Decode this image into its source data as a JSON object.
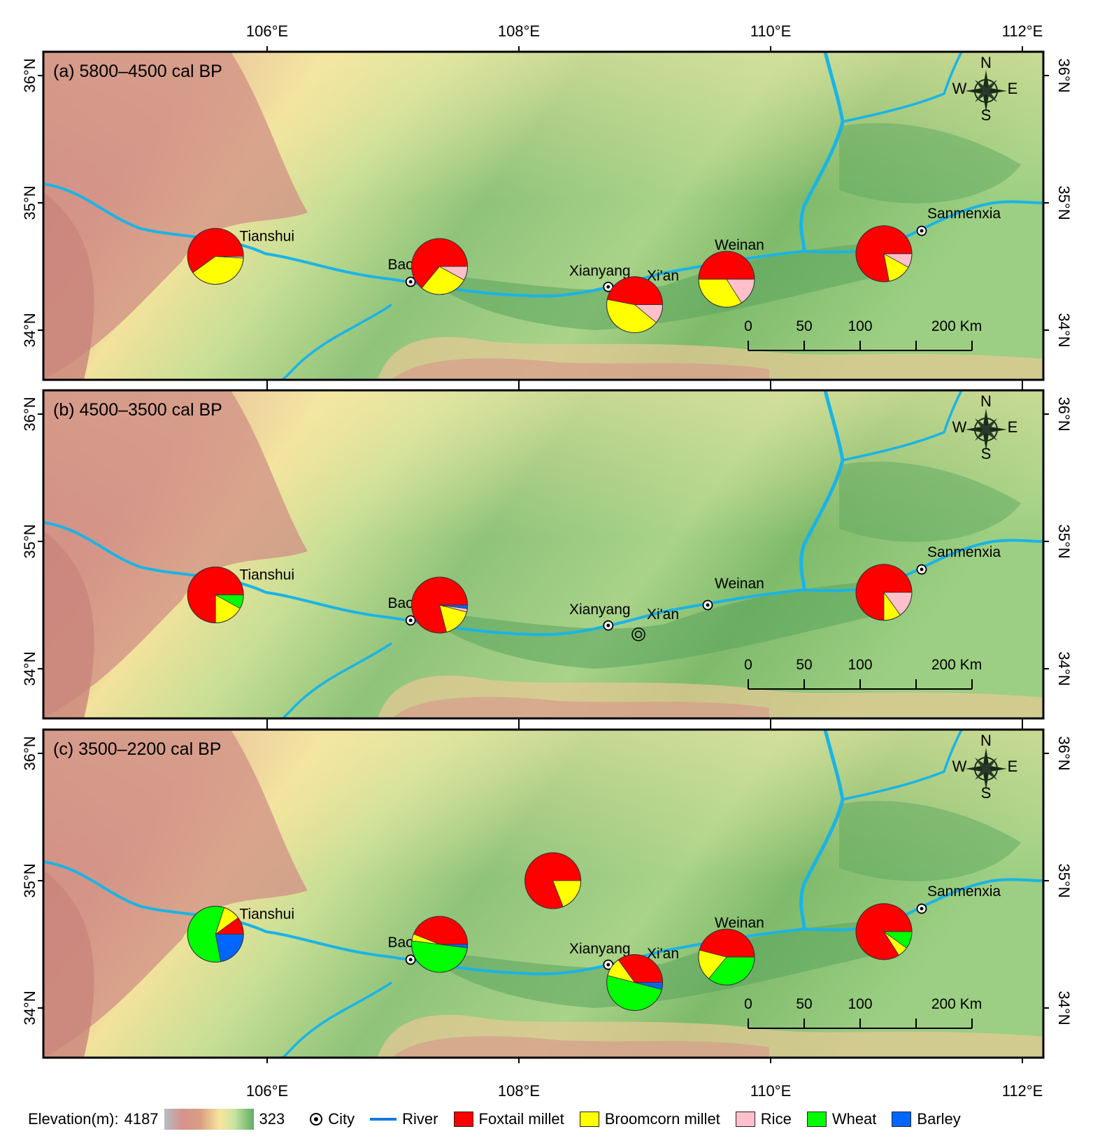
{
  "map": {
    "lon_ticks": [
      "106°E",
      "108°E",
      "110°E",
      "112°E"
    ],
    "lat_ticks": [
      "36°N",
      "35°N",
      "34°N"
    ],
    "compass": {
      "n": "N",
      "s": "S",
      "e": "E",
      "w": "W"
    },
    "scale_labels": [
      "0",
      "50",
      "100",
      "200 Km"
    ],
    "colors": {
      "foxtail_millet": "#ff0000",
      "broomcorn_millet": "#ffff00",
      "rice": "#ffc0cb",
      "wheat": "#00ff00",
      "barley": "#0066ff",
      "river": "#1ab4e6"
    },
    "panels": [
      {
        "title": "(a) 5800–4500 cal BP",
        "cities": [
          {
            "name": "Tianshui",
            "lon": 105.72,
            "lat": 34.58
          },
          {
            "name": "Baoji",
            "lon": 107.14,
            "lat": 34.38
          },
          {
            "name": "Xianyang",
            "lon": 108.71,
            "lat": 34.34
          },
          {
            "name": "Xi'an",
            "lon": 108.95,
            "lat": 34.27
          },
          {
            "name": "Weinan",
            "lon": 109.5,
            "lat": 34.5
          },
          {
            "name": "Sanmenxia",
            "lon": 111.2,
            "lat": 34.78
          }
        ],
        "pies": [
          {
            "lon": 105.59,
            "lat": 34.58,
            "foxtail_millet": 0.6,
            "broomcorn_millet": 0.39,
            "rice": 0.01,
            "wheat": 0,
            "barley": 0
          },
          {
            "lon": 107.37,
            "lat": 34.5,
            "foxtail_millet": 0.64,
            "broomcorn_millet": 0.28,
            "rice": 0.08,
            "wheat": 0,
            "barley": 0
          },
          {
            "lon": 108.92,
            "lat": 34.2,
            "foxtail_millet": 0.47,
            "broomcorn_millet": 0.42,
            "rice": 0.11,
            "wheat": 0,
            "barley": 0
          },
          {
            "lon": 109.65,
            "lat": 34.4,
            "foxtail_millet": 0.5,
            "broomcorn_millet": 0.34,
            "rice": 0.16,
            "wheat": 0,
            "barley": 0
          },
          {
            "lon": 110.9,
            "lat": 34.6,
            "foxtail_millet": 0.78,
            "broomcorn_millet": 0.14,
            "rice": 0.08,
            "wheat": 0,
            "barley": 0
          }
        ]
      },
      {
        "title": "(b) 4500–3500 cal BP",
        "cities": [
          {
            "name": "Tianshui",
            "lon": 105.72,
            "lat": 34.58
          },
          {
            "name": "Baoji",
            "lon": 107.14,
            "lat": 34.38
          },
          {
            "name": "Xianyang",
            "lon": 108.71,
            "lat": 34.34
          },
          {
            "name": "Xi'an",
            "lon": 108.95,
            "lat": 34.27
          },
          {
            "name": "Weinan",
            "lon": 109.5,
            "lat": 34.5
          },
          {
            "name": "Sanmenxia",
            "lon": 111.2,
            "lat": 34.78
          }
        ],
        "pies": [
          {
            "lon": 105.59,
            "lat": 34.58,
            "foxtail_millet": 0.75,
            "broomcorn_millet": 0.17,
            "rice": 0,
            "wheat": 0.08,
            "barley": 0
          },
          {
            "lon": 107.37,
            "lat": 34.5,
            "foxtail_millet": 0.79,
            "broomcorn_millet": 0.17,
            "rice": 0.02,
            "wheat": 0,
            "barley": 0.02
          },
          {
            "lon": 110.9,
            "lat": 34.6,
            "foxtail_millet": 0.75,
            "broomcorn_millet": 0.1,
            "rice": 0.15,
            "wheat": 0,
            "barley": 0
          }
        ]
      },
      {
        "title": "(c) 3500–2200 cal BP",
        "cities": [
          {
            "name": "Tianshui",
            "lon": 105.72,
            "lat": 34.58
          },
          {
            "name": "Baoji",
            "lon": 107.14,
            "lat": 34.38
          },
          {
            "name": "Xianyang",
            "lon": 108.71,
            "lat": 34.34
          },
          {
            "name": "Xi'an",
            "lon": 108.95,
            "lat": 34.27
          },
          {
            "name": "Weinan",
            "lon": 109.5,
            "lat": 34.5
          },
          {
            "name": "Sanmenxia",
            "lon": 111.2,
            "lat": 34.78
          }
        ],
        "pies": [
          {
            "lon": 108.27,
            "lat": 35.0,
            "foxtail_millet": 0.81,
            "broomcorn_millet": 0.19,
            "rice": 0,
            "wheat": 0,
            "barley": 0
          },
          {
            "lon": 105.59,
            "lat": 34.58,
            "foxtail_millet": 0.1,
            "broomcorn_millet": 0.1,
            "rice": 0,
            "wheat": 0.58,
            "barley": 0.22
          },
          {
            "lon": 107.37,
            "lat": 34.5,
            "foxtail_millet": 0.44,
            "broomcorn_millet": 0.04,
            "rice": 0,
            "wheat": 0.5,
            "barley": 0.02
          },
          {
            "lon": 108.92,
            "lat": 34.2,
            "foxtail_millet": 0.35,
            "broomcorn_millet": 0.11,
            "rice": 0,
            "wheat": 0.5,
            "barley": 0.04
          },
          {
            "lon": 109.65,
            "lat": 34.4,
            "foxtail_millet": 0.46,
            "broomcorn_millet": 0.18,
            "rice": 0,
            "wheat": 0.36,
            "barley": 0
          },
          {
            "lon": 110.9,
            "lat": 34.6,
            "foxtail_millet": 0.84,
            "broomcorn_millet": 0.06,
            "rice": 0,
            "wheat": 0.1,
            "barley": 0
          }
        ]
      }
    ]
  },
  "legend": {
    "elevation_label": "Elevation(m):",
    "elevation_max": "4187",
    "elevation_min": "323",
    "city": "City",
    "river": "River",
    "foxtail_millet": "Foxtail millet",
    "broomcorn_millet": "Broomcorn millet",
    "rice": "Rice",
    "wheat": "Wheat",
    "barley": "Barley"
  }
}
